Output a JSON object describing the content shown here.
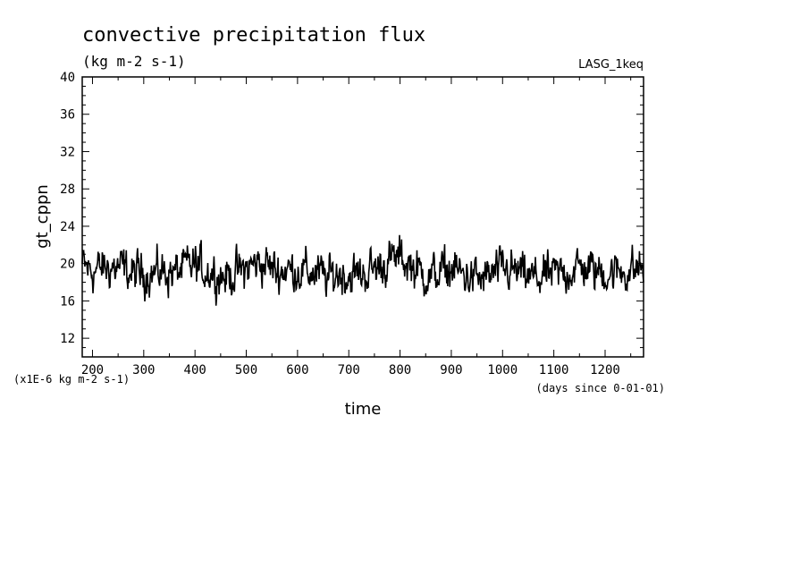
{
  "chart_data": {
    "type": "line",
    "title": "convective precipitation flux",
    "subtitle": "(kg m-2 s-1)",
    "tag": "LASG_1keq",
    "xlabel": "time",
    "x_units": "(days since 0-01-01)",
    "ylabel": "gt_cppn",
    "y_units": "(x1E-6 kg m-2 s-1)",
    "xlim": [
      180,
      1275
    ],
    "ylim": [
      10,
      40
    ],
    "x_ticks": [
      200,
      300,
      400,
      500,
      600,
      700,
      800,
      900,
      1000,
      1100,
      1200
    ],
    "y_ticks": [
      12,
      16,
      20,
      24,
      28,
      32,
      36,
      40
    ],
    "series": [
      {
        "color": "#000000",
        "x": [
          180,
          200,
          220,
          240,
          260,
          280,
          300,
          320,
          340,
          360,
          380,
          400,
          420,
          440,
          460,
          480,
          500,
          520,
          540,
          560,
          580,
          600,
          620,
          640,
          660,
          680,
          700,
          720,
          740,
          760,
          780,
          800,
          820,
          840,
          860,
          880,
          900,
          920,
          940,
          960,
          980,
          1000,
          1020,
          1040,
          1060,
          1080,
          1100,
          1120,
          1140,
          1160,
          1180,
          1200,
          1220,
          1240,
          1260,
          1275
        ],
        "y": [
          19.8,
          19.2,
          19.5,
          19.6,
          19.4,
          18.8,
          19.1,
          18.9,
          19.2,
          19.0,
          19.5,
          19.8,
          19.3,
          19.0,
          18.6,
          19.0,
          19.4,
          20.1,
          19.9,
          19.2,
          19.4,
          19.3,
          19.1,
          18.9,
          18.4,
          19.0,
          18.7,
          18.8,
          19.2,
          19.7,
          20.3,
          20.6,
          19.9,
          19.0,
          18.6,
          19.1,
          19.4,
          18.9,
          18.5,
          18.3,
          18.8,
          19.3,
          19.2,
          18.7,
          18.4,
          18.6,
          18.8,
          19.0,
          19.4,
          19.6,
          19.2,
          19.0,
          19.1,
          19.3,
          19.4,
          19.7
        ]
      }
    ]
  }
}
